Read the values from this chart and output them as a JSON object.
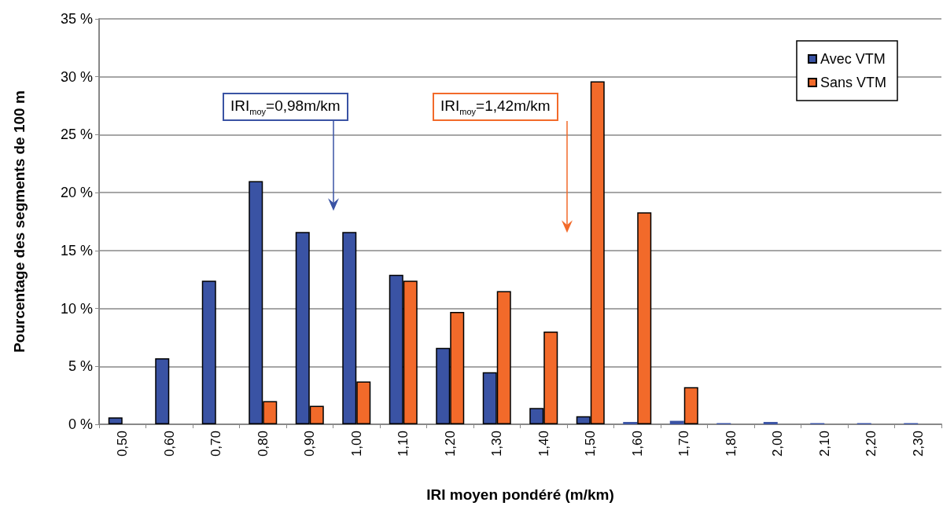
{
  "chart_data": {
    "type": "bar",
    "xlabel": "IRI moyen pondéré (m/km)",
    "ylabel": "Pourcentage des segments de 100 m",
    "categories": [
      "0,50",
      "0,60",
      "0,70",
      "0,80",
      "0,90",
      "1,00",
      "1,10",
      "1,20",
      "1,30",
      "1,40",
      "1,50",
      "1,60",
      "1,70",
      "1,80",
      "2,00",
      "2,10",
      "2,20",
      "2,30"
    ],
    "series": [
      {
        "name": "Avec VTM",
        "color": "#3a53a4",
        "values": [
          0.6,
          5.7,
          12.4,
          21.0,
          16.6,
          16.6,
          12.9,
          6.6,
          4.5,
          1.4,
          0.7,
          0.2,
          0.3,
          0.1,
          0.2,
          0.1,
          0.1,
          0.1
        ]
      },
      {
        "name": "Sans VTM",
        "color": "#f26a2a",
        "values": [
          null,
          null,
          null,
          2.0,
          1.6,
          3.7,
          12.4,
          9.7,
          11.5,
          8.0,
          29.6,
          18.3,
          3.2,
          null,
          null,
          null,
          null,
          null
        ]
      }
    ],
    "ylim": [
      0,
      35
    ],
    "yticks": [
      {
        "value": 0,
        "label": "0 %"
      },
      {
        "value": 5,
        "label": "5 %"
      },
      {
        "value": 10,
        "label": "10 %"
      },
      {
        "value": 15,
        "label": "15 %"
      },
      {
        "value": 20,
        "label": "20 %"
      },
      {
        "value": 25,
        "label": "25 %"
      },
      {
        "value": 30,
        "label": "30 %"
      },
      {
        "value": 35,
        "label": "35 %"
      }
    ],
    "grid": "y",
    "legend": "top right",
    "annotations": [
      "IRI$_{moy}$=0,98m/km",
      "IRI$_{moy}$=1,42m/km"
    ]
  }
}
